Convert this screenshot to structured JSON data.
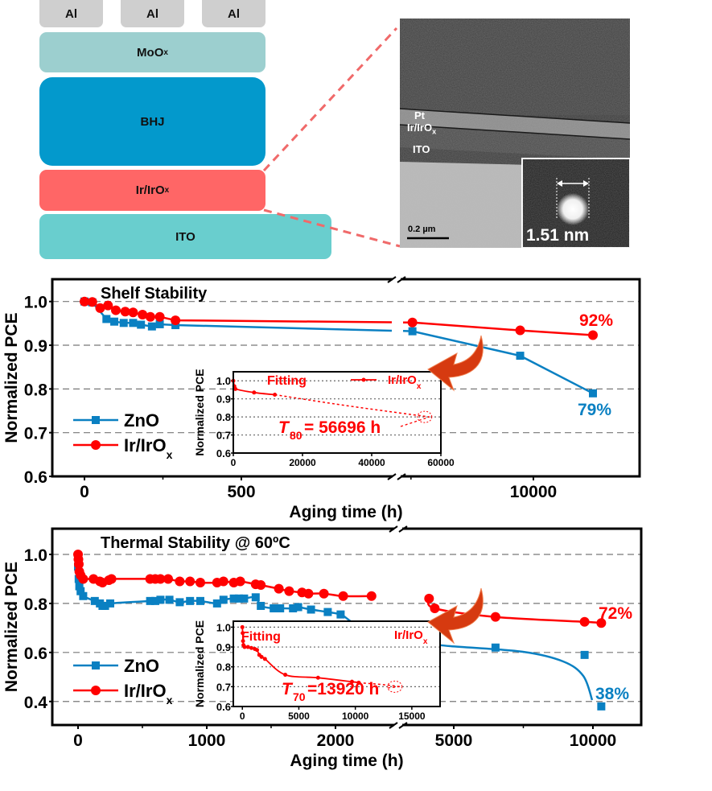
{
  "device_stack": {
    "electrodes": [
      "Al",
      "Al",
      "Al"
    ],
    "layers": [
      {
        "name": "MoO",
        "sub": "x",
        "color": "#9ccfcf"
      },
      {
        "name": "BHJ",
        "sub": "",
        "color": "#0399cc"
      },
      {
        "name": "Ir/IrO",
        "sub": "x",
        "color": "#ff6666"
      },
      {
        "name": "ITO",
        "sub": "",
        "color": "#69cece"
      }
    ],
    "electrode_color": "#cfcfcf",
    "zoom_line_color": "#f06a6a"
  },
  "tem_image": {
    "labels": {
      "pt": "Pt",
      "irox": "Ir/IrO",
      "irox_sub": "x",
      "ito": "ITO"
    },
    "scale_bar": "0.2 µm",
    "inset_size": "1.51 nm"
  },
  "colors": {
    "zno": "#0a80c2",
    "irox": "#ff0000",
    "arrow": "#d63a10"
  },
  "chart_data": [
    {
      "type": "line",
      "title": "Shelf Stability",
      "xlabel": "Aging time (h)",
      "ylabel": "Normalized PCE",
      "ylim": [
        0.6,
        1.05
      ],
      "yticks": [
        "0.6",
        "0.7",
        "0.8",
        "0.9",
        "1.0"
      ],
      "xticks": [
        "0",
        "500",
        "10000"
      ],
      "x_axis_break": true,
      "grid": "dashed horizontal",
      "legend": {
        "position": "bottom-left",
        "entries": [
          "ZnO",
          "Ir/IrO",
          "x"
        ]
      },
      "series": [
        {
          "name": "ZnO",
          "marker": "square",
          "points": [
            [
              0,
              1.0
            ],
            [
              25,
              0.998
            ],
            [
              70,
              0.96
            ],
            [
              95,
              0.954
            ],
            [
              125,
              0.951
            ],
            [
              155,
              0.951
            ],
            [
              180,
              0.947
            ],
            [
              215,
              0.943
            ],
            [
              240,
              0.948
            ],
            [
              290,
              0.946
            ],
            [
              860,
              0.932
            ],
            [
              9000,
              0.876
            ],
            [
              13000,
              0.79
            ]
          ]
        },
        {
          "name": "Ir/IrOx",
          "marker": "circle",
          "points": [
            [
              0,
              1.0
            ],
            [
              25,
              0.999
            ],
            [
              50,
              0.985
            ],
            [
              75,
              0.991
            ],
            [
              100,
              0.98
            ],
            [
              130,
              0.977
            ],
            [
              155,
              0.975
            ],
            [
              185,
              0.97
            ],
            [
              210,
              0.965
            ],
            [
              240,
              0.965
            ],
            [
              290,
              0.957
            ],
            [
              860,
              0.952
            ],
            [
              9000,
              0.934
            ],
            [
              13000,
              0.923
            ]
          ]
        }
      ],
      "annotations": {
        "irox_final": "92%",
        "zno_final": "79%"
      },
      "inset": {
        "ylabel": "Normalized PCE",
        "yticks": [
          "0.6",
          "0.7",
          "0.8",
          "0.9",
          "1.0"
        ],
        "xticks": [
          "0",
          "20000",
          "40000",
          "60000"
        ],
        "xlim": [
          0,
          60000
        ],
        "ylim": [
          0.6,
          1.05
        ],
        "fitting_label": "Fitting",
        "legend": "Ir/IrO",
        "legend_sub": "x",
        "t_label": "T",
        "t_sub": "80",
        "t_value": "= 56696 h",
        "data": [
          [
            0,
            1.0
          ],
          [
            300,
            0.97
          ],
          [
            600,
            0.955
          ],
          [
            6000,
            0.935
          ],
          [
            12000,
            0.923
          ]
        ],
        "fit": [
          [
            12000,
            0.923
          ],
          [
            30000,
            0.87
          ],
          [
            45000,
            0.83
          ],
          [
            56696,
            0.8
          ]
        ]
      }
    },
    {
      "type": "line",
      "title": "Thermal Stability @ 60ºC",
      "xlabel": "Aging time (h)",
      "ylabel": "Normalized PCE",
      "ylim": [
        0.3,
        1.1
      ],
      "yticks": [
        "0.4",
        "0.6",
        "0.8",
        "1.0"
      ],
      "xticks": [
        "0",
        "1000",
        "2000",
        "5000",
        "10000"
      ],
      "x_axis_break": true,
      "grid": "dashed horizontal",
      "legend": {
        "position": "bottom-left",
        "entries": [
          "ZnO",
          "Ir/IrO",
          "x"
        ]
      },
      "series": [
        {
          "name": "ZnO",
          "marker": "square",
          "points": [
            [
              0,
              0.95
            ],
            [
              5,
              0.9
            ],
            [
              10,
              0.87
            ],
            [
              20,
              0.85
            ],
            [
              40,
              0.83
            ],
            [
              130,
              0.81
            ],
            [
              170,
              0.8
            ],
            [
              190,
              0.79
            ],
            [
              210,
              0.79
            ],
            [
              250,
              0.8
            ],
            [
              560,
              0.81
            ],
            [
              600,
              0.81
            ],
            [
              640,
              0.815
            ],
            [
              710,
              0.815
            ],
            [
              790,
              0.805
            ],
            [
              870,
              0.81
            ],
            [
              950,
              0.81
            ],
            [
              1080,
              0.8
            ],
            [
              1130,
              0.815
            ],
            [
              1210,
              0.82
            ],
            [
              1250,
              0.82
            ],
            [
              1290,
              0.82
            ],
            [
              1380,
              0.825
            ],
            [
              1420,
              0.79
            ],
            [
              1520,
              0.78
            ],
            [
              1570,
              0.78
            ],
            [
              1670,
              0.78
            ],
            [
              1710,
              0.785
            ],
            [
              1810,
              0.775
            ],
            [
              1940,
              0.765
            ],
            [
              2040,
              0.755
            ],
            [
              6500,
              0.62
            ],
            [
              9700,
              0.59
            ],
            [
              10300,
              0.38
            ]
          ]
        },
        {
          "name": "Ir/IrOx",
          "marker": "circle",
          "points": [
            [
              0,
              1.0
            ],
            [
              3,
              0.98
            ],
            [
              6,
              0.96
            ],
            [
              10,
              0.93
            ],
            [
              20,
              0.915
            ],
            [
              40,
              0.9
            ],
            [
              120,
              0.9
            ],
            [
              170,
              0.89
            ],
            [
              190,
              0.885
            ],
            [
              240,
              0.895
            ],
            [
              260,
              0.9
            ],
            [
              560,
              0.9
            ],
            [
              600,
              0.9
            ],
            [
              640,
              0.9
            ],
            [
              700,
              0.9
            ],
            [
              790,
              0.89
            ],
            [
              870,
              0.89
            ],
            [
              950,
              0.885
            ],
            [
              1080,
              0.885
            ],
            [
              1130,
              0.89
            ],
            [
              1210,
              0.885
            ],
            [
              1260,
              0.89
            ],
            [
              1380,
              0.878
            ],
            [
              1420,
              0.875
            ],
            [
              1560,
              0.86
            ],
            [
              1640,
              0.85
            ],
            [
              1740,
              0.845
            ],
            [
              1790,
              0.84
            ],
            [
              1910,
              0.84
            ],
            [
              2060,
              0.83
            ],
            [
              2280,
              0.83
            ],
            [
              3700,
              0.82
            ],
            [
              4000,
              0.78
            ],
            [
              6500,
              0.745
            ],
            [
              9700,
              0.725
            ],
            [
              10300,
              0.72
            ]
          ]
        }
      ],
      "annotations": {
        "irox_final": "72%",
        "zno_final": "38%"
      },
      "inset": {
        "ylabel": "Normalized PCE",
        "yticks": [
          "0.6",
          "0.7",
          "0.8",
          "0.9",
          "1.0"
        ],
        "xticks": [
          "0",
          "5000",
          "10000",
          "15000"
        ],
        "xlim": [
          -800,
          17500
        ],
        "ylim": [
          0.6,
          1.03
        ],
        "fitting_label": "Fitting",
        "legend": "Ir/IrO",
        "legend_sub": "x",
        "t_label": "T",
        "t_sub": "70",
        "t_value": "=13920 h",
        "data": [
          [
            0,
            1.0
          ],
          [
            30,
            0.97
          ],
          [
            60,
            0.93
          ],
          [
            100,
            0.91
          ],
          [
            200,
            0.9
          ],
          [
            500,
            0.9
          ],
          [
            800,
            0.895
          ],
          [
            1100,
            0.89
          ],
          [
            1300,
            0.885
          ],
          [
            1500,
            0.86
          ],
          [
            1700,
            0.85
          ],
          [
            2000,
            0.84
          ],
          [
            3800,
            0.76
          ],
          [
            6700,
            0.745
          ],
          [
            9700,
            0.725
          ],
          [
            10300,
            0.72
          ]
        ],
        "fit": [
          [
            10300,
            0.72
          ],
          [
            12500,
            0.71
          ],
          [
            13920,
            0.7
          ]
        ]
      }
    }
  ]
}
